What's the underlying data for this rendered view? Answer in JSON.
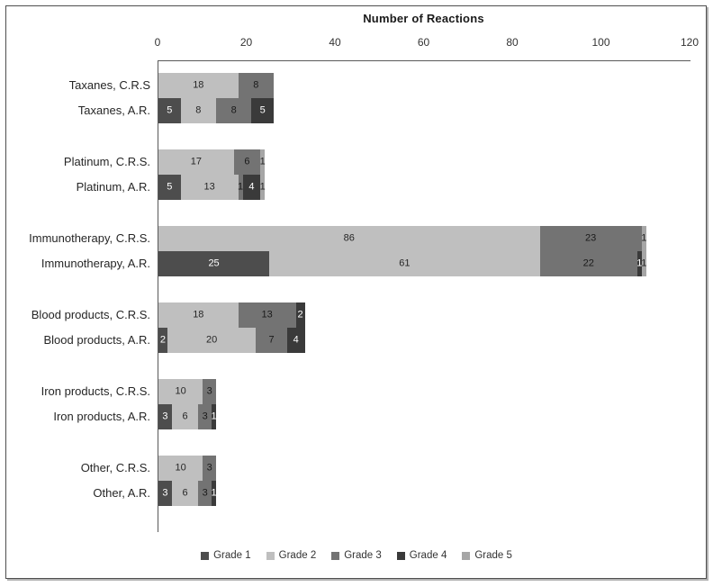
{
  "frame": {
    "background": "#ffffff",
    "border_color": "#4f4f4f",
    "shadow_color": "#b3b3b3"
  },
  "chart_data": {
    "type": "bar",
    "variant": "horizontal-stacked",
    "title": "Number of Reactions",
    "xlabel": "Number of Reactions",
    "ylabel": "",
    "xlim": [
      0,
      120
    ],
    "xticks": [
      0,
      20,
      40,
      60,
      80,
      100,
      120
    ],
    "grid": false,
    "legend_position": "bottom",
    "axis_color": "#595959",
    "series": [
      {
        "name": "Grade 1",
        "color": "#4d4d4d",
        "label_color": "#ffffff"
      },
      {
        "name": "Grade 2",
        "color": "#bfbfbf",
        "label_color": "#262626"
      },
      {
        "name": "Grade 3",
        "color": "#737373",
        "label_color": "#1a1a1a"
      },
      {
        "name": "Grade 4",
        "color": "#3a3a3a",
        "label_color": "#ffffff"
      },
      {
        "name": "Grade 5",
        "color": "#a6a6a6",
        "label_color": "#262626"
      }
    ],
    "rows": [
      {
        "label": "Taxanes, C.R.S",
        "segments": [
          {
            "series": "Grade 2",
            "value": 18
          },
          {
            "series": "Grade 3",
            "value": 8
          }
        ]
      },
      {
        "label": "Taxanes, A.R.",
        "segments": [
          {
            "series": "Grade 1",
            "value": 5
          },
          {
            "series": "Grade 2",
            "value": 8
          },
          {
            "series": "Grade 3",
            "value": 8
          },
          {
            "series": "Grade 4",
            "value": 5
          }
        ]
      },
      {
        "label": "Platinum, C.R.S.",
        "segments": [
          {
            "series": "Grade 2",
            "value": 17
          },
          {
            "series": "Grade 3",
            "value": 6
          },
          {
            "series": "Grade 5",
            "value": 1
          }
        ]
      },
      {
        "label": "Platinum, A.R.",
        "segments": [
          {
            "series": "Grade 1",
            "value": 5
          },
          {
            "series": "Grade 2",
            "value": 13
          },
          {
            "series": "Grade 3",
            "value": 1
          },
          {
            "series": "Grade 4",
            "value": 4
          },
          {
            "series": "Grade 5",
            "value": 1
          }
        ]
      },
      {
        "label": "Immunotherapy, C.R.S.",
        "segments": [
          {
            "series": "Grade 2",
            "value": 86
          },
          {
            "series": "Grade 3",
            "value": 23
          },
          {
            "series": "Grade 5",
            "value": 1
          }
        ]
      },
      {
        "label": "Immunotherapy, A.R.",
        "segments": [
          {
            "series": "Grade 1",
            "value": 25
          },
          {
            "series": "Grade 2",
            "value": 61
          },
          {
            "series": "Grade 3",
            "value": 22
          },
          {
            "series": "Grade 4",
            "value": 1
          },
          {
            "series": "Grade 5",
            "value": 1
          }
        ]
      },
      {
        "label": "Blood products, C.R.S.",
        "segments": [
          {
            "series": "Grade 2",
            "value": 18
          },
          {
            "series": "Grade 3",
            "value": 13
          },
          {
            "series": "Grade 4",
            "value": 2
          }
        ]
      },
      {
        "label": "Blood products, A.R.",
        "segments": [
          {
            "series": "Grade 1",
            "value": 2
          },
          {
            "series": "Grade 2",
            "value": 20
          },
          {
            "series": "Grade 3",
            "value": 7
          },
          {
            "series": "Grade 4",
            "value": 4
          }
        ]
      },
      {
        "label": "Iron products, C.R.S.",
        "segments": [
          {
            "series": "Grade 2",
            "value": 10
          },
          {
            "series": "Grade 3",
            "value": 3
          }
        ]
      },
      {
        "label": "Iron products, A.R.",
        "segments": [
          {
            "series": "Grade 1",
            "value": 3
          },
          {
            "series": "Grade 2",
            "value": 6
          },
          {
            "series": "Grade 3",
            "value": 3
          },
          {
            "series": "Grade 4",
            "value": 1
          }
        ]
      },
      {
        "label": "Other, C.R.S.",
        "segments": [
          {
            "series": "Grade 2",
            "value": 10
          },
          {
            "series": "Grade 3",
            "value": 3
          }
        ]
      },
      {
        "label": "Other, A.R.",
        "segments": [
          {
            "series": "Grade 1",
            "value": 3
          },
          {
            "series": "Grade 2",
            "value": 6
          },
          {
            "series": "Grade 3",
            "value": 3
          },
          {
            "series": "Grade 4",
            "value": 1
          }
        ]
      }
    ]
  }
}
